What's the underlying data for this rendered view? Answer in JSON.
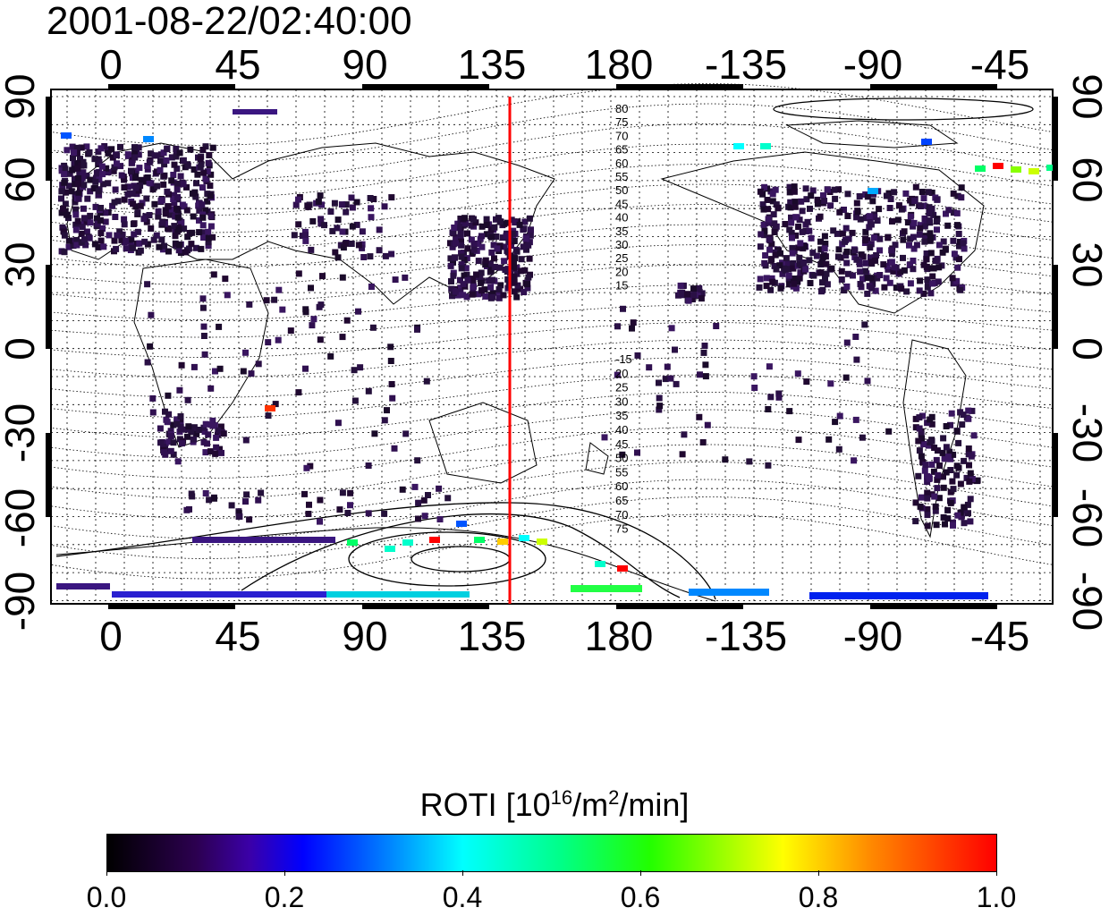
{
  "title": "2001-08-22/02:40:00",
  "map": {
    "x_tick_labels": [
      "0",
      "45",
      "90",
      "135",
      "180",
      "-135",
      "-90",
      "-45"
    ],
    "y_tick_labels": [
      "90",
      "60",
      "30",
      "0",
      "-30",
      "-60",
      "-90"
    ],
    "contour_labels_north": [
      "80",
      "75",
      "70",
      "65",
      "60",
      "55",
      "50",
      "45",
      "40",
      "35",
      "30",
      "25",
      "20",
      "15"
    ],
    "contour_labels_south": [
      "-15",
      "20",
      "25",
      "30",
      "35",
      "40",
      "45",
      "50",
      "55",
      "60",
      "65",
      "70",
      "75"
    ],
    "terminator_color": "#ff0000"
  },
  "colorbar": {
    "title_prefix": "ROTI  [10",
    "title_sup1": "16",
    "title_mid": "/m",
    "title_sup2": "2",
    "title_suffix": "/min]",
    "tick_labels": [
      "0.0",
      "0.2",
      "0.4",
      "0.6",
      "0.8",
      "1.0"
    ]
  }
}
